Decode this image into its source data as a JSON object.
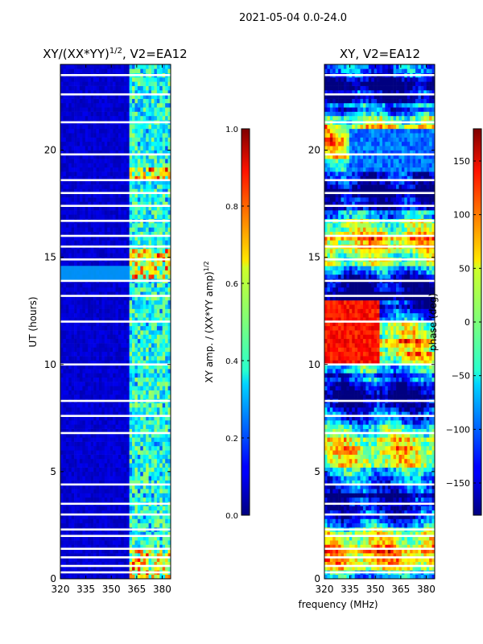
{
  "suptitle": "2021-05-04 0.0-24.0",
  "shared_xlabel": "frequency (MHz)",
  "chart_data": [
    {
      "type": "heatmap",
      "title": "XY/(XX*YY)^1/2, V2=EA12",
      "title_main": "XY/(XX*YY)",
      "title_exp": "1/2",
      "title_tail": ", V2=EA12",
      "ylabel": "UT (hours)",
      "xlim": [
        320,
        385
      ],
      "ylim": [
        0,
        24
      ],
      "xticks": [
        320,
        335,
        350,
        365,
        380
      ],
      "yticks": [
        0,
        5,
        10,
        15,
        20
      ],
      "colorbar": {
        "label_main": "XY amp. / (XX*YY amp)",
        "label_exp": "1/2",
        "range": [
          0.0,
          1.0
        ],
        "ticks": [
          "0.0",
          "0.2",
          "0.4",
          "0.6",
          "0.8",
          "1.0"
        ],
        "tick_values": [
          0.0,
          0.2,
          0.4,
          0.6,
          0.8,
          1.0
        ],
        "colormap": "jet"
      },
      "band_edge_mhz": 361,
      "low_band_value": 0.05,
      "high_band_value_range": [
        0.3,
        0.55
      ],
      "flagged_hours": [
        0.3,
        0.6,
        1.0,
        1.4,
        2.0,
        2.3,
        3.0,
        3.5,
        4.4,
        6.8,
        7.6,
        8.3,
        10.0,
        12.0,
        13.2,
        13.9,
        14.9,
        15.5,
        16.0,
        16.7,
        17.4,
        18.0,
        18.6,
        19.8,
        21.3,
        22.6,
        23.5
      ]
    },
    {
      "type": "heatmap",
      "title": "XY, V2=EA12",
      "ylabel": "",
      "xlim": [
        320,
        385
      ],
      "ylim": [
        0,
        24
      ],
      "xticks": [
        320,
        335,
        350,
        365,
        380
      ],
      "yticks": [
        0,
        5,
        10,
        15,
        20
      ],
      "colorbar": {
        "label_main": "phase (deg)",
        "range": [
          -180,
          180
        ],
        "ticks": [
          "−150",
          "−100",
          "−50",
          "0",
          "50",
          "100",
          "150"
        ],
        "tick_values": [
          -150,
          -100,
          -50,
          0,
          50,
          100,
          150
        ],
        "colormap": "jet"
      },
      "flagged_hours": [
        0.3,
        0.6,
        1.0,
        1.4,
        2.0,
        2.3,
        3.0,
        3.5,
        4.4,
        6.8,
        7.6,
        8.3,
        10.0,
        12.0,
        13.2,
        13.9,
        14.9,
        15.5,
        16.0,
        16.7,
        17.4,
        18.0,
        18.6,
        19.8,
        21.3,
        22.6,
        23.5
      ]
    }
  ]
}
